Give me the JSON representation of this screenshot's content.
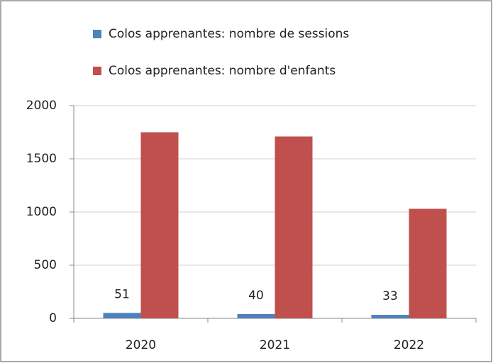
{
  "chart_data": {
    "type": "bar",
    "categories": [
      "2020",
      "2021",
      "2022"
    ],
    "series": [
      {
        "name": "Colos apprenantes: nombre de sessions",
        "color": "#4f81bd",
        "values": [
          51,
          40,
          33
        ]
      },
      {
        "name": "Colos apprenantes: nombre d'enfants",
        "color": "#c0504d",
        "values": [
          1750,
          1710,
          1030
        ]
      }
    ],
    "data_labels_series": [
      0
    ],
    "ylim": [
      0,
      2000
    ],
    "yticks": [
      0,
      500,
      1000,
      1500,
      2000
    ],
    "grid": true
  }
}
